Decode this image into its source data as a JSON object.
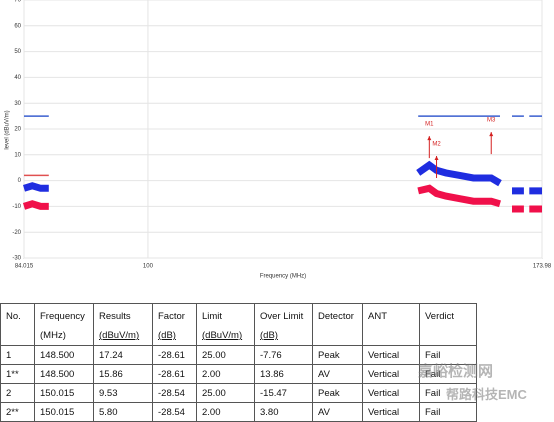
{
  "chart_data": {
    "type": "line",
    "xlabel": "Frequency (MHz)",
    "ylabel": "level (dBuV/m)",
    "log_x": true,
    "grid": true,
    "xlim": [
      84.015,
      173.98
    ],
    "xticks": [
      84.015,
      100,
      173.98
    ],
    "ylim": [
      -30,
      70
    ],
    "yticks": [
      -30,
      -20,
      -10,
      0,
      10,
      20,
      30,
      40,
      50,
      60,
      70
    ],
    "x": [
      84.015,
      85,
      86,
      87,
      120,
      146.2,
      148.5,
      150,
      152,
      155,
      158,
      162,
      164,
      165.5,
      166.8,
      168,
      169.6,
      170.3,
      170.9,
      172.5,
      173.98
    ],
    "series": [
      {
        "color": "#1f2de0",
        "width": 7,
        "values": [
          -3,
          -2,
          -3,
          -3,
          null,
          3,
          6,
          4,
          3,
          2,
          1,
          1,
          -1,
          null,
          -4,
          -4,
          -4,
          null,
          -4,
          -4,
          -4
        ]
      },
      {
        "color": "#f0104a",
        "width": 7,
        "values": [
          -10,
          -9,
          -10,
          -10,
          null,
          -4,
          -3,
          -5,
          -6,
          -7,
          -8,
          -8,
          -9,
          null,
          -11,
          -11,
          -11,
          null,
          -11,
          -11,
          -11
        ]
      },
      {
        "color": "#3a5fcf",
        "width": 1.5,
        "values": [
          25,
          25,
          25,
          25,
          null,
          25,
          25,
          25,
          25,
          25,
          25,
          25,
          25,
          null,
          25,
          25,
          25,
          null,
          25,
          25,
          25
        ]
      },
      {
        "color": "#e05050",
        "width": 1.5,
        "values": [
          2,
          2,
          2,
          2,
          null,
          null,
          null,
          null,
          null,
          null,
          null,
          null,
          null,
          null,
          null,
          null,
          null,
          null,
          null,
          null,
          null
        ]
      }
    ],
    "marker_color": "#d42020",
    "markers": [
      {
        "label": "M1",
        "x": 148.5,
        "value": 17.24
      },
      {
        "label": "M2",
        "x": 150.015,
        "value": 9.53
      },
      {
        "label": "M3",
        "x": 162,
        "value": 18.8
      }
    ]
  },
  "table": {
    "header": [
      [
        "No."
      ],
      [
        "Frequency",
        "(MHz)"
      ],
      [
        "Results",
        "(dBuV/m)"
      ],
      [
        "Factor",
        "(dB)"
      ],
      [
        "Limit",
        "(dBuV/m)"
      ],
      [
        "Over Limit",
        "(dB)"
      ],
      [
        "Detector"
      ],
      [
        "ANT"
      ],
      [
        "Verdict"
      ]
    ],
    "rows": [
      [
        "1",
        "148.500",
        "17.24",
        "-28.61",
        "25.00",
        "-7.76",
        "Peak",
        "Vertical",
        "Fail"
      ],
      [
        "1**",
        "148.500",
        "15.86",
        "-28.61",
        "2.00",
        "13.86",
        "AV",
        "Vertical",
        "Fail"
      ],
      [
        "2",
        "150.015",
        "9.53",
        "-28.54",
        "25.00",
        "-15.47",
        "Peak",
        "Vertical",
        "Fail"
      ],
      [
        "2**",
        "150.015",
        "5.80",
        "-28.54",
        "2.00",
        "3.80",
        "AV",
        "Vertical",
        "Fail"
      ]
    ]
  },
  "watermark": [
    "嘉峪检测网",
    "帮路科技EMC"
  ]
}
